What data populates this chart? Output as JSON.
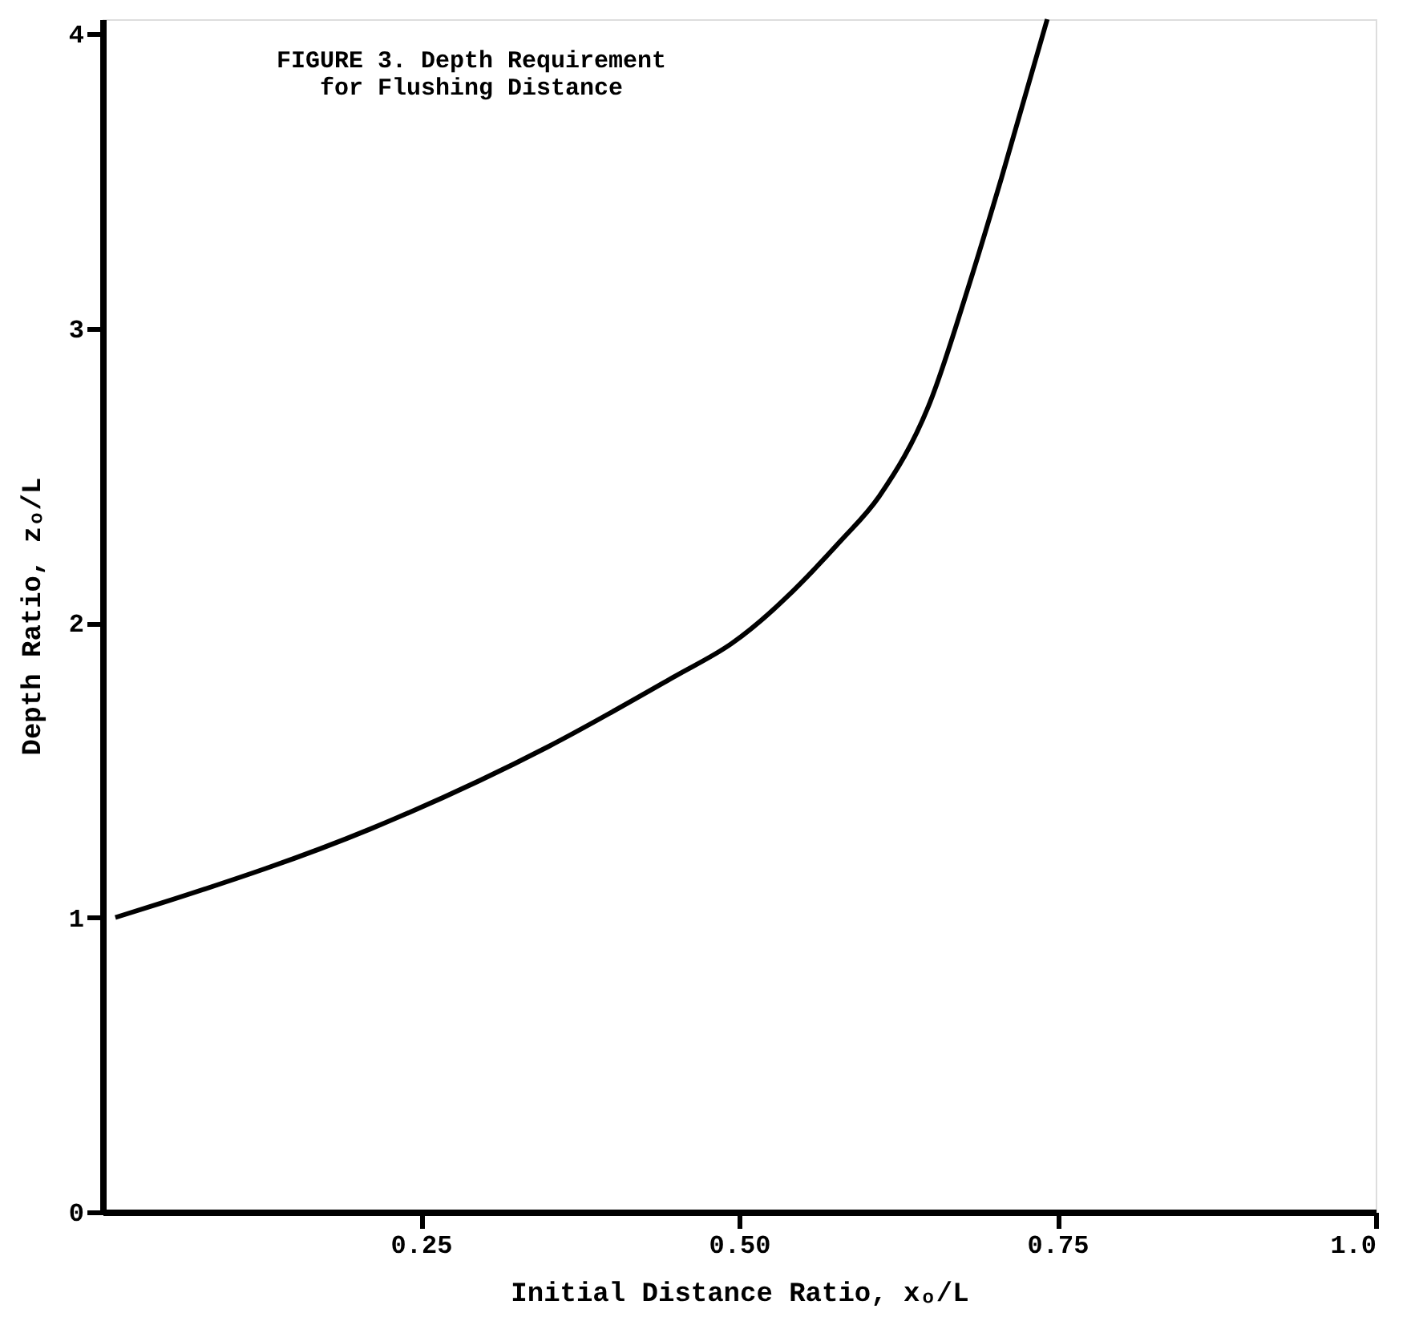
{
  "chart_data": {
    "type": "line",
    "title": [
      "FIGURE 3.  Depth Requirement",
      "for Flushing Distance"
    ],
    "xlabel": "Initial Distance Ratio, xₒ/L",
    "ylabel": "Depth Ratio, zₒ/L",
    "series": [
      {
        "color": "#000000",
        "x": [
          0.01,
          0.047,
          0.21,
          0.35,
          0.45,
          0.494,
          0.58,
          0.61,
          0.65,
          0.68,
          0.706,
          0.742
        ],
        "values": [
          1.0,
          1.05,
          1.3,
          1.58,
          1.82,
          1.93,
          2.28,
          2.43,
          2.75,
          3.14,
          3.51,
          4.05
        ]
      }
    ],
    "xlim": [
      0,
      1.0
    ],
    "ylim": [
      0,
      4.05
    ],
    "xticks": [
      {
        "value": 0.25,
        "label": "0.25"
      },
      {
        "value": 0.5,
        "label": "0.50"
      },
      {
        "value": 0.75,
        "label": "0.75"
      },
      {
        "value": 1.0,
        "label": "1.0"
      }
    ],
    "yticks": [
      0,
      1,
      2,
      3,
      4
    ],
    "grid": false,
    "marker": "none",
    "line_style": "solid"
  }
}
